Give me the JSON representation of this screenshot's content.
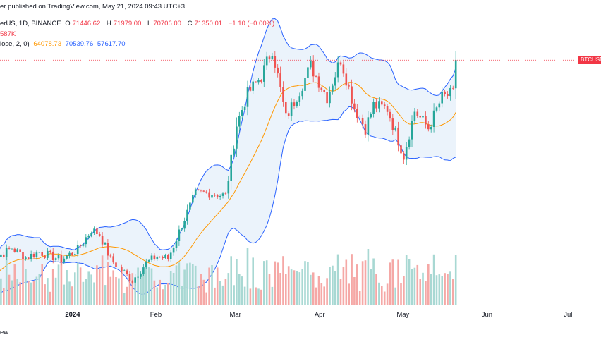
{
  "header": {
    "line1": "er published on TradingView.com, May 21, 2024 09:43 UTC+3",
    "symbol": "erUS, 1D, BINANCE",
    "o_label": "O",
    "o_value": "71446.62",
    "h_label": "H",
    "h_value": "71979.00",
    "l_label": "L",
    "l_value": "70706.00",
    "c_label": "C",
    "c_value": "71350.01",
    "change": "−1.10 (−0.00%)",
    "volume": "587K",
    "bb_label": "lose, 2, 0)",
    "bb_basis": "64078.73",
    "bb_upper": "70539.76",
    "bb_lower": "57617.70"
  },
  "price_tag": "BTCUSDT",
  "footer": "ew",
  "colors": {
    "up": "#26a69a",
    "down": "#ef5350",
    "vol_up": "#a8d8d3",
    "vol_down": "#f5a8a6",
    "basis": "#ff9800",
    "band": "#2962ff",
    "band_fill": "#e3eefa"
  },
  "chart_data": {
    "type": "candlestick",
    "x_ticks": [
      {
        "label": "2024",
        "date": "2024-01-01",
        "bold": true
      },
      {
        "label": "Feb",
        "date": "2024-02-01"
      },
      {
        "label": "Mar",
        "date": "2024-03-01"
      },
      {
        "label": "Apr",
        "date": "2024-04-01"
      },
      {
        "label": "May",
        "date": "2024-05-01"
      },
      {
        "label": "Jun",
        "date": "2024-06-01"
      },
      {
        "label": "Jul",
        "date": "2024-07-01"
      }
    ],
    "x_range": [
      "2023-12-01",
      "2024-07-12"
    ],
    "y_range": [
      36000,
      78000
    ],
    "last_price": 71350,
    "ohlc_anchors": [
      [
        "2023-12-01",
        38600
      ],
      [
        "2023-12-05",
        43000
      ],
      [
        "2023-12-10",
        44200
      ],
      [
        "2023-12-15",
        42800
      ],
      [
        "2023-12-20",
        43600
      ],
      [
        "2023-12-28",
        42500
      ],
      [
        "2024-01-03",
        44000
      ],
      [
        "2024-01-08",
        46800
      ],
      [
        "2024-01-11",
        46200
      ],
      [
        "2024-01-15",
        42500
      ],
      [
        "2024-01-23",
        39500
      ],
      [
        "2024-01-28",
        42000
      ],
      [
        "2024-02-01",
        43000
      ],
      [
        "2024-02-05",
        42600
      ],
      [
        "2024-02-10",
        47500
      ],
      [
        "2024-02-15",
        52000
      ],
      [
        "2024-02-20",
        52200
      ],
      [
        "2024-02-26",
        51700
      ],
      [
        "2024-03-01",
        62000
      ],
      [
        "2024-03-05",
        66500
      ],
      [
        "2024-03-10",
        69000
      ],
      [
        "2024-03-14",
        73000
      ],
      [
        "2024-03-19",
        63000
      ],
      [
        "2024-03-24",
        67000
      ],
      [
        "2024-03-28",
        70500
      ],
      [
        "2024-04-03",
        66000
      ],
      [
        "2024-04-08",
        71500
      ],
      [
        "2024-04-13",
        64500
      ],
      [
        "2024-04-17",
        61500
      ],
      [
        "2024-04-20",
        64800
      ],
      [
        "2024-04-25",
        64300
      ],
      [
        "2024-05-01",
        57500
      ],
      [
        "2024-05-05",
        64000
      ],
      [
        "2024-05-10",
        61500
      ],
      [
        "2024-05-15",
        66000
      ],
      [
        "2024-05-19",
        66500
      ],
      [
        "2024-05-20",
        71350
      ]
    ]
  }
}
